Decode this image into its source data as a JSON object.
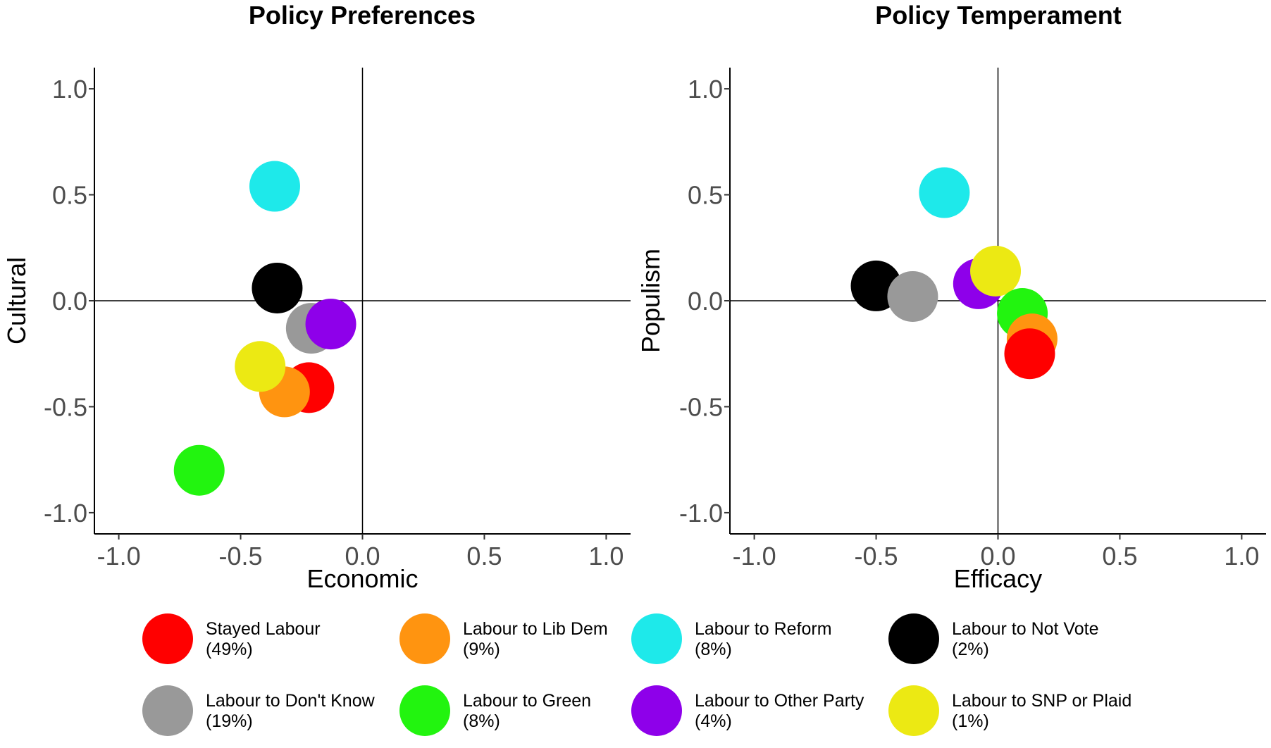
{
  "chart_data": [
    {
      "type": "scatter",
      "title": "Policy Preferences",
      "xlabel": "Economic",
      "ylabel": "Cultural",
      "xlim": [
        -1.1,
        1.1
      ],
      "ylim": [
        -1.1,
        1.1
      ],
      "xticks": [
        "-1.0",
        "-0.5",
        "0.0",
        "0.5",
        "1.0"
      ],
      "yticks": [
        "1.0",
        "0.5",
        "0.0",
        "-0.5",
        "-1.0"
      ],
      "reference_lines": {
        "x": 0,
        "y": 0
      },
      "points": [
        {
          "group": "Labour to Reform",
          "x": -0.36,
          "y": 0.54
        },
        {
          "group": "Labour to Not Vote",
          "x": -0.35,
          "y": 0.06
        },
        {
          "group": "Labour to Don't Know",
          "x": -0.21,
          "y": -0.13
        },
        {
          "group": "Labour to Other Party",
          "x": -0.13,
          "y": -0.11
        },
        {
          "group": "Stayed Labour",
          "x": -0.22,
          "y": -0.41
        },
        {
          "group": "Labour to Lib Dem",
          "x": -0.32,
          "y": -0.43
        },
        {
          "group": "Labour to SNP or Plaid",
          "x": -0.42,
          "y": -0.31
        },
        {
          "group": "Labour to Green",
          "x": -0.67,
          "y": -0.8
        }
      ]
    },
    {
      "type": "scatter",
      "title": "Policy Temperament",
      "xlabel": "Efficacy",
      "ylabel": "Populism",
      "xlim": [
        -1.1,
        1.1
      ],
      "ylim": [
        -1.1,
        1.1
      ],
      "xticks": [
        "-1.0",
        "-0.5",
        "0.0",
        "0.5",
        "1.0"
      ],
      "yticks": [
        "1.0",
        "0.5",
        "0.0",
        "-0.5",
        "-1.0"
      ],
      "reference_lines": {
        "x": 0,
        "y": 0
      },
      "points": [
        {
          "group": "Labour to Reform",
          "x": -0.22,
          "y": 0.51
        },
        {
          "group": "Labour to Not Vote",
          "x": -0.5,
          "y": 0.07
        },
        {
          "group": "Labour to Don't Know",
          "x": -0.35,
          "y": 0.02
        },
        {
          "group": "Labour to Other Party",
          "x": -0.08,
          "y": 0.08
        },
        {
          "group": "Labour to SNP or Plaid",
          "x": -0.01,
          "y": 0.14
        },
        {
          "group": "Labour to Green",
          "x": 0.1,
          "y": -0.06
        },
        {
          "group": "Labour to Lib Dem",
          "x": 0.14,
          "y": -0.18
        },
        {
          "group": "Stayed Labour",
          "x": 0.13,
          "y": -0.25
        }
      ]
    }
  ],
  "legend": {
    "items": [
      {
        "name": "Stayed Labour",
        "share": "(49%)",
        "color": "#ff0000"
      },
      {
        "name": "Labour to Lib Dem",
        "share": "(9%)",
        "color": "#ff9410"
      },
      {
        "name": "Labour to Reform",
        "share": "(8%)",
        "color": "#1ee9ea"
      },
      {
        "name": "Labour to Not Vote",
        "share": "(2%)",
        "color": "#000000"
      },
      {
        "name": "Labour to Don't Know",
        "share": "(19%)",
        "color": "#999999"
      },
      {
        "name": "Labour to Green",
        "share": "(8%)",
        "color": "#22f40f"
      },
      {
        "name": "Labour to Other Party",
        "share": "(4%)",
        "color": "#8e00ea"
      },
      {
        "name": "Labour to SNP or Plaid",
        "share": "(1%)",
        "color": "#ece913"
      }
    ]
  }
}
